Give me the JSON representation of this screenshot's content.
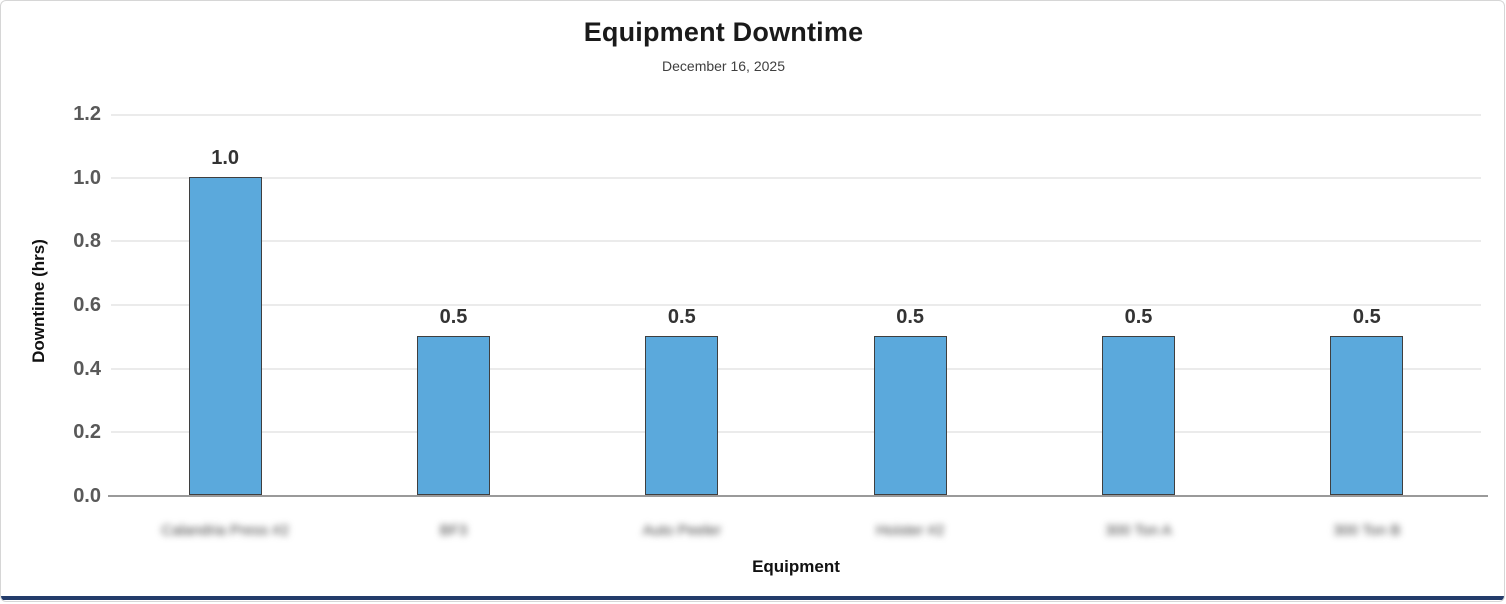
{
  "window": {
    "background_color": "#ffffff",
    "card_border_color": "#d6d6d6",
    "bottom_strip_color": "#233c6b"
  },
  "chart_data": {
    "type": "bar",
    "title": "Equipment Downtime",
    "subtitle": "December 16, 2025",
    "xlabel": "Equipment",
    "ylabel": "Downtime (hrs)",
    "categories": [
      "Calandria Press #2",
      "BF3",
      "Auto Peeler",
      "Hoister #2",
      "300 Ton A",
      "300 Ton B"
    ],
    "categories_blurred": true,
    "values": [
      1.0,
      0.5,
      0.5,
      0.5,
      0.5,
      0.5
    ],
    "data_labels": [
      "1.0",
      "0.5",
      "0.5",
      "0.5",
      "0.5",
      "0.5"
    ],
    "y_ticks": [
      1.2,
      1.0,
      0.8,
      0.6,
      0.4,
      0.2,
      0.0
    ],
    "y_tick_labels": [
      "1.2",
      "1.0",
      "0.8",
      "0.6",
      "0.4",
      "0.2",
      "0.0"
    ],
    "ylim": [
      0,
      1.2
    ],
    "grid": "horizontal",
    "legend": "none",
    "bar_color": "#5ba9dc",
    "bar_border_color": "#3f3f3f",
    "gridline_color": "#ebebeb",
    "axis_line_color": "#9a9a9a"
  }
}
